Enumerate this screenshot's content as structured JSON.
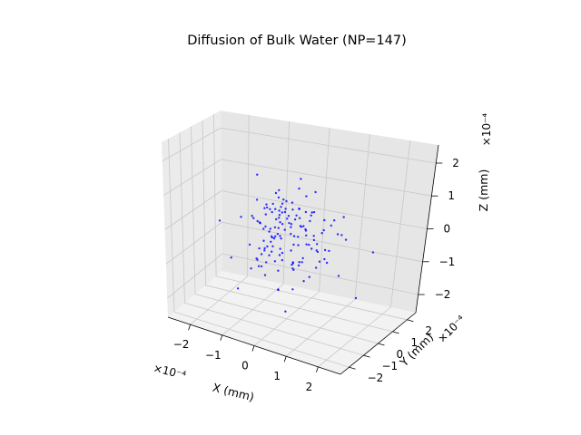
{
  "chart_data": {
    "type": "scatter",
    "title": "Diffusion of Bulk Water (NP=147)",
    "xlabel": "X (mm)",
    "ylabel": "Y (mm)",
    "zlabel": "Z (mm)",
    "offset_label": "×10⁻⁴",
    "x_ticks": [
      "−2",
      "−1",
      "0",
      "1",
      "2"
    ],
    "y_ticks": [
      "−2",
      "−1",
      "0",
      "1",
      "2"
    ],
    "z_ticks": [
      "−2",
      "−1",
      "0",
      "1",
      "2"
    ],
    "x_tick_values": [
      -2,
      -1,
      0,
      1,
      2
    ],
    "y_tick_values": [
      -2,
      -1,
      0,
      1,
      2
    ],
    "z_tick_values": [
      -2,
      -1,
      0,
      1,
      2
    ],
    "xlim": [
      -2.7,
      2.7
    ],
    "ylim": [
      -2.6,
      2.6
    ],
    "zlim": [
      -2.55,
      2.55
    ],
    "scale": 0.0001,
    "grid": true,
    "marker_color": "#0000ff",
    "points": [
      [
        -0.73,
        -0.51,
        1.66
      ],
      [
        -0.58,
        0.2,
        -0.47
      ],
      [
        -0.18,
        -0.31,
        0.47
      ],
      [
        0.93,
        1.39,
        -0.23
      ],
      [
        -0.49,
        0.06,
        0.72
      ],
      [
        -0.24,
        0.64,
        0.06
      ],
      [
        0.38,
        -0.65,
        -0.63
      ],
      [
        -0.24,
        0.06,
        -0.25
      ],
      [
        0.96,
        0.15,
        -0.59
      ],
      [
        -0.63,
        -0.13,
        -0.59
      ],
      [
        -0.13,
        -0.33,
        -0.05
      ],
      [
        -0.41,
        -0.65,
        0.89
      ],
      [
        0.11,
        1.59,
        -0.5
      ],
      [
        -0.54,
        -0.32,
        -1.31
      ],
      [
        0.58,
        -0.35,
        0.83
      ],
      [
        0.63,
        -0.17,
        -0.16
      ],
      [
        -0.69,
        -0.87,
        0.47
      ],
      [
        0.03,
        0.31,
        -0.18
      ],
      [
        -0.35,
        -0.85,
        0.66
      ],
      [
        -0.39,
        0.01,
        -0.21
      ],
      [
        0.36,
        -0.54,
        -0.86
      ],
      [
        -1.22,
        0.89,
        0.47
      ],
      [
        -0.57,
        0.28,
        -0.36
      ],
      [
        0.59,
        0.14,
        -0.37
      ],
      [
        -0.65,
        -0.32,
        -0.72
      ],
      [
        -0.51,
        0.05,
        -0.25
      ],
      [
        0.08,
        0.47,
        0.61
      ],
      [
        -0.31,
        0.08,
        -1.23
      ],
      [
        0.87,
        0.94,
        0.32
      ],
      [
        -0.07,
        -1.28,
        -0.35
      ],
      [
        0.66,
        0.34,
        -0.27
      ],
      [
        -0.71,
        0.62,
        0.28
      ],
      [
        -0.19,
        1.16,
        0.98
      ],
      [
        0.4,
        0.51,
        0.47
      ],
      [
        0.03,
        0.83,
        -0.04
      ],
      [
        -0.5,
        0.36,
        0.18
      ],
      [
        0.14,
        -0.02,
        -0.84
      ],
      [
        -0.48,
        0.21,
        0.53
      ],
      [
        0.06,
        0.21,
        -0.4
      ],
      [
        -1.21,
        -0.41,
        0.27
      ],
      [
        -0.62,
        -0.59,
        -0.47
      ],
      [
        0.39,
        0.2,
        0.1
      ],
      [
        -0.06,
        -0.19,
        0.64
      ],
      [
        0.12,
        -0.15,
        0.95
      ],
      [
        -1.1,
        0.64,
        -1.26
      ],
      [
        0.56,
        1.06,
        -0.08
      ],
      [
        -0.44,
        -0.03,
        -0.51
      ],
      [
        -0.42,
        0.58,
        0.35
      ],
      [
        -0.23,
        -0.08,
        0.27
      ],
      [
        -0.37,
        -0.8,
        0.29
      ],
      [
        0.33,
        0.29,
        1.08
      ],
      [
        -0.52,
        0.57,
        0.78
      ],
      [
        0.61,
        -0.56,
        0.48
      ],
      [
        0.16,
        -0.03,
        -1.63
      ],
      [
        -0.59,
        -0.26,
        -0.61
      ],
      [
        -0.56,
        0.03,
        0.55
      ],
      [
        -0.09,
        -0.07,
        0.7
      ],
      [
        -1.47,
        1.09,
        -1.01
      ],
      [
        0.77,
        0.96,
        -0.62
      ],
      [
        -1.49,
        -1.35,
        0.31
      ],
      [
        0.36,
        -1.39,
        1.39
      ],
      [
        0.25,
        -0.54,
        0.16
      ],
      [
        -0.03,
        -0.72,
        0.31
      ],
      [
        -0.51,
        0.31,
        -0.05
      ],
      [
        0.75,
        -0.7,
        0.28
      ],
      [
        0.32,
        0.35,
        0.08
      ],
      [
        1.01,
        0.21,
        -0.7
      ],
      [
        -0.72,
        -0.31,
        0.2
      ],
      [
        0.43,
        -0.31,
        -0.68
      ],
      [
        -0.24,
        -0.47,
        -0.11
      ],
      [
        0.55,
        0.04,
        0.46
      ],
      [
        0.32,
        -0.51,
        -0.84
      ],
      [
        0.34,
        -0.24,
        0.02
      ],
      [
        -0.14,
        0.19,
        0.33
      ],
      [
        -0.15,
        -0.07,
        -0.62
      ],
      [
        -0.11,
        -0.26,
        0.89
      ],
      [
        0.17,
        0.37,
        0.14
      ],
      [
        0.84,
        -0.14,
        -0.28
      ],
      [
        -0.58,
        0.06,
        -0.13
      ],
      [
        0.53,
        0.71,
        -1.11
      ],
      [
        0.17,
        -1.19,
        -1.3
      ],
      [
        0.76,
        -0.96,
        -0.42
      ],
      [
        0.32,
        -0.58,
        -0.71
      ],
      [
        -0.63,
        -0.25,
        0.02
      ],
      [
        1.23,
        0.55,
        -1.13
      ],
      [
        0.09,
        1.11,
        -0.63
      ],
      [
        0.22,
        -0.36,
        0.82
      ],
      [
        -0.19,
        -0.15,
        0.75
      ],
      [
        -0.28,
        0.3,
        -0.97
      ],
      [
        -0.29,
        -0.06,
        1.2
      ],
      [
        -0.98,
        -0.18,
        0.3
      ],
      [
        -0.6,
        -0.59,
        0.28
      ],
      [
        -0.19,
        0.64,
        -0.05
      ],
      [
        0.54,
        -0.34,
        -0.53
      ],
      [
        -0.06,
        -0.57,
        -1.55
      ],
      [
        0.38,
        0.21,
        -1.4
      ],
      [
        0.9,
        -0.21,
        -0.29
      ],
      [
        -0.17,
        -0.22,
        -0.65
      ],
      [
        -1.4,
        -0.68,
        -0.92
      ],
      [
        -0.01,
        0.73,
        0.51
      ],
      [
        -0.19,
        1.26,
        1.25
      ],
      [
        -0.01,
        0.75,
        -0.58
      ],
      [
        -0.22,
        0.08,
        0.18
      ],
      [
        0.88,
        1.23,
        -0.17
      ],
      [
        -0.31,
        -0.22,
        1.15
      ],
      [
        0.67,
        0.08,
        -0.08
      ],
      [
        -0.1,
        0.2,
        0.42
      ],
      [
        0.06,
        0.35,
        0.43
      ],
      [
        0.87,
        0.74,
        0.22
      ],
      [
        -0.08,
        -0.81,
        -0.65
      ],
      [
        -0.71,
        -0.5,
        0.29
      ],
      [
        0.18,
        -0.33,
        0.38
      ],
      [
        -0.56,
        0.09,
        -0.05
      ],
      [
        0.26,
        -0.51,
        -0.33
      ],
      [
        -0.25,
        -0.63,
        -0.46
      ],
      [
        0.26,
        0.97,
        -1.53
      ],
      [
        -0.56,
        -0.56,
        -0.99
      ],
      [
        1.04,
        -0.04,
        -0.25
      ],
      [
        0.24,
        -0.77,
        -2.04
      ],
      [
        -0.73,
        0.06,
        -0.44
      ],
      [
        0.86,
        0.06,
        -0.66
      ],
      [
        -0.81,
        -0.08,
        -1.18
      ],
      [
        -0.23,
        0.29,
        -0.05
      ],
      [
        -0.58,
        -0.14,
        0.64
      ],
      [
        0.44,
        0.46,
        0.58
      ],
      [
        -0.02,
        -0.59,
        -0.33
      ],
      [
        0.58,
        0.24,
        0.68
      ],
      [
        0.35,
        1.52,
        -0.34
      ],
      [
        -0.37,
        0.14,
        -0.17
      ],
      [
        -0.73,
        -0.5,
        -0.82
      ],
      [
        0.27,
        0.08,
        -0.93
      ],
      [
        0.63,
        0.87,
        0.29
      ],
      [
        -0.07,
        -0.08,
        0.93
      ],
      [
        0.23,
        0.13,
        0.45
      ],
      [
        -0.48,
        -0.6,
        0.75
      ],
      [
        0.16,
        -1.18,
        0.97
      ],
      [
        1.5,
        0.22,
        0.09
      ],
      [
        1.86,
        1.25,
        -0.49
      ],
      [
        1.0,
        -0.77,
        1.61
      ],
      [
        -0.82,
        -0.68,
        -1.09
      ],
      [
        -0.15,
        -0.35,
        0.57
      ],
      [
        1.56,
        1.07,
        -1.87
      ],
      [
        -0.46,
        -0.47,
        -0.87
      ],
      [
        -1.01,
        -1.23,
        -1.58
      ],
      [
        1.3,
        0.48,
        0.64
      ],
      [
        0.41,
        -0.66,
        0.65
      ],
      [
        -0.51,
        -0.27,
        -0.47
      ]
    ]
  }
}
